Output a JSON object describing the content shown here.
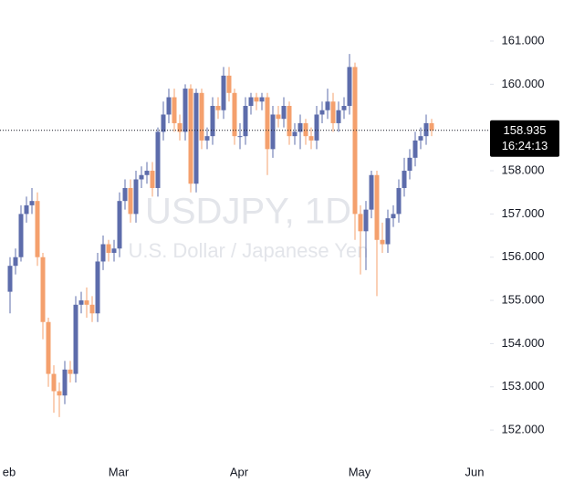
{
  "chart_data": {
    "type": "candlestick",
    "symbol_watermark": "USDJPY, 1D",
    "description_watermark": "U.S. Dollar / Japanese Yen",
    "up_color": "#5d6cab",
    "down_color": "#f4a06d",
    "categories": [
      "eb",
      null,
      null,
      null,
      null,
      null,
      null,
      null,
      null,
      null,
      null,
      null,
      null,
      null,
      null,
      null,
      null,
      null,
      null,
      null,
      "Mar",
      null,
      null,
      null,
      null,
      null,
      null,
      null,
      null,
      null,
      null,
      null,
      null,
      null,
      null,
      null,
      null,
      null,
      null,
      null,
      null,
      null,
      "Apr",
      null,
      null,
      null,
      null,
      null,
      null,
      null,
      null,
      null,
      null,
      null,
      null,
      null,
      null,
      null,
      null,
      null,
      null,
      null,
      null,
      null,
      "May",
      null,
      null,
      null,
      null,
      null,
      null,
      null,
      null,
      null,
      null,
      null,
      null,
      null,
      null,
      null,
      null,
      null,
      null,
      null,
      null,
      "Jun"
    ],
    "open": [
      155.2,
      155.8,
      156.0,
      157.0,
      157.2,
      157.3,
      156.0,
      154.5,
      153.3,
      152.9,
      152.8,
      153.4,
      153.3,
      154.9,
      155.0,
      154.9,
      154.7,
      155.9,
      156.3,
      156.1,
      156.2,
      157.3,
      157.6,
      157.0,
      157.8,
      157.9,
      158.0,
      157.6,
      158.9,
      159.3,
      159.7,
      159.1,
      158.9,
      159.9,
      157.7,
      159.8,
      158.7,
      158.8,
      159.5,
      159.4,
      160.2,
      159.8,
      158.8,
      158.8,
      159.5,
      159.7,
      159.6,
      159.7,
      158.5,
      159.3,
      159.2,
      159.5,
      158.8,
      158.9,
      159.1,
      158.8,
      158.7,
      159.3,
      159.4,
      159.6,
      159.1,
      159.4,
      159.5,
      160.4,
      157.0,
      156.6,
      157.1,
      157.9,
      156.4,
      156.3,
      156.9,
      157.0,
      157.6,
      158.0,
      158.3,
      158.7,
      158.8,
      159.1,
      null,
      null,
      null,
      null,
      null,
      null,
      null,
      null
    ],
    "high": [
      156.0,
      156.2,
      157.2,
      157.4,
      157.6,
      157.5,
      156.1,
      154.6,
      153.5,
      153.1,
      153.6,
      153.6,
      155.1,
      155.2,
      155.3,
      155.1,
      156.1,
      156.5,
      156.4,
      156.4,
      157.5,
      157.8,
      157.8,
      158.0,
      158.1,
      158.2,
      158.2,
      159.0,
      159.6,
      159.9,
      159.9,
      159.3,
      160.0,
      160.0,
      159.9,
      159.9,
      159.0,
      159.7,
      159.7,
      160.4,
      160.4,
      159.9,
      159.1,
      159.7,
      159.8,
      159.8,
      159.8,
      159.8,
      159.5,
      159.5,
      159.7,
      159.6,
      159.1,
      159.3,
      159.2,
      159.0,
      159.5,
      159.6,
      159.9,
      159.8,
      159.6,
      159.7,
      160.7,
      160.5,
      157.2,
      157.3,
      158.0,
      158.0,
      156.8,
      157.1,
      157.2,
      157.8,
      158.3,
      158.5,
      158.9,
      159.0,
      159.3,
      159.2,
      null,
      null,
      null,
      null,
      null,
      null,
      null,
      null
    ],
    "low": [
      154.7,
      155.6,
      155.9,
      156.8,
      157.0,
      155.8,
      154.1,
      153.0,
      152.4,
      152.3,
      152.6,
      153.1,
      153.1,
      154.7,
      154.6,
      154.5,
      154.5,
      155.7,
      155.9,
      155.9,
      156.0,
      157.1,
      156.8,
      156.8,
      157.6,
      157.7,
      157.4,
      157.4,
      158.7,
      159.1,
      158.9,
      158.7,
      158.7,
      157.5,
      157.5,
      158.5,
      158.5,
      158.6,
      159.2,
      159.2,
      159.6,
      158.6,
      158.5,
      158.6,
      159.3,
      159.4,
      159.4,
      157.9,
      158.3,
      159.0,
      159.0,
      158.6,
      158.6,
      158.5,
      158.6,
      158.5,
      158.5,
      159.1,
      159.2,
      158.9,
      158.9,
      159.2,
      159.3,
      156.4,
      155.6,
      155.7,
      156.9,
      155.1,
      156.1,
      156.1,
      156.7,
      156.8,
      157.4,
      157.8,
      158.1,
      158.5,
      158.6,
      158.8,
      null,
      null,
      null,
      null,
      null,
      null,
      null,
      null
    ],
    "close": [
      155.8,
      156.0,
      157.0,
      157.2,
      157.3,
      156.0,
      154.5,
      153.3,
      152.9,
      152.8,
      153.4,
      153.3,
      154.9,
      155.0,
      154.9,
      154.7,
      155.9,
      156.3,
      156.1,
      156.2,
      157.3,
      157.6,
      157.0,
      157.8,
      157.9,
      158.0,
      157.6,
      158.9,
      159.3,
      159.7,
      159.1,
      158.9,
      159.9,
      157.7,
      159.8,
      158.7,
      158.8,
      159.5,
      159.4,
      160.2,
      159.8,
      158.8,
      158.8,
      159.5,
      159.7,
      159.6,
      159.7,
      158.5,
      159.3,
      159.2,
      159.5,
      158.8,
      158.9,
      159.1,
      158.8,
      158.7,
      159.3,
      159.4,
      159.6,
      159.1,
      159.4,
      159.5,
      160.4,
      157.0,
      156.6,
      157.1,
      157.9,
      156.4,
      156.3,
      156.9,
      157.0,
      157.6,
      158.0,
      158.3,
      158.7,
      158.8,
      159.1,
      158.935,
      null,
      null,
      null,
      null,
      null,
      null,
      null,
      null
    ],
    "last_price": 158.935,
    "countdown": "16:24:13",
    "ylim": [
      151.39,
      161.95
    ],
    "yticks": [
      {
        "value": 152,
        "label": "152.000"
      },
      {
        "value": 153,
        "label": "153.000"
      },
      {
        "value": 154,
        "label": "154.000"
      },
      {
        "value": 155,
        "label": "155.000"
      },
      {
        "value": 156,
        "label": "156.000"
      },
      {
        "value": 157,
        "label": "157.000"
      },
      {
        "value": 158,
        "label": "158.000"
      },
      {
        "value": 159,
        "label": "159.000"
      },
      {
        "value": 160,
        "label": "160.000"
      },
      {
        "value": 161,
        "label": "161.000"
      }
    ]
  }
}
